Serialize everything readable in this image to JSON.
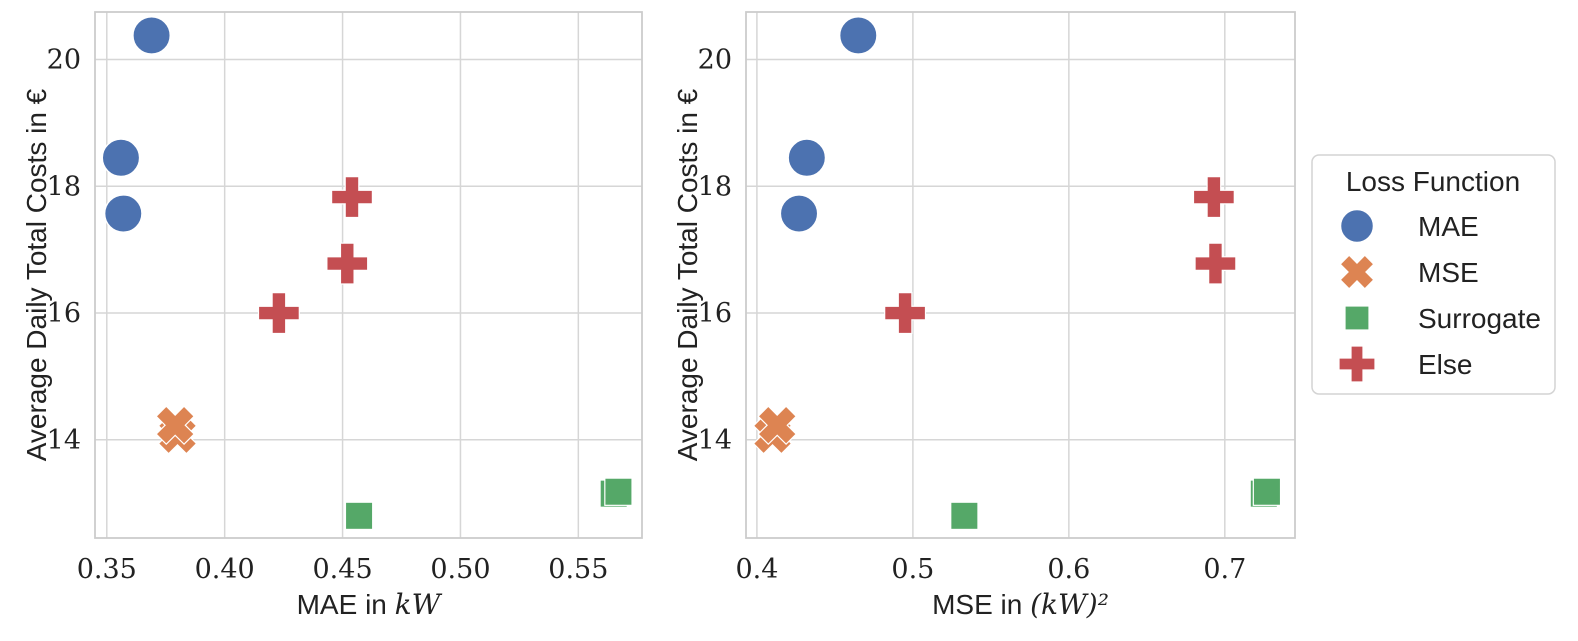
{
  "chart_data": [
    {
      "type": "scatter",
      "xlabel_prefix": "MAE in ",
      "xlabel_math": "kW",
      "ylabel": "Average Daily Total Costs in €",
      "xlim": [
        0.345,
        0.577
      ],
      "ylim": [
        12.45,
        20.75
      ],
      "xticks": [
        0.35,
        0.4,
        0.45,
        0.5,
        0.55
      ],
      "xtick_labels": [
        "0.35",
        "0.40",
        "0.45",
        "0.50",
        "0.55"
      ],
      "yticks": [
        14,
        16,
        18,
        20
      ],
      "ytick_labels": [
        "14",
        "16",
        "18",
        "20"
      ],
      "grid": true,
      "series": [
        {
          "name": "MAE",
          "marker": "circle",
          "color": "#4c72b0",
          "points": [
            {
              "x": 0.369,
              "y": 20.38
            },
            {
              "x": 0.356,
              "y": 18.45
            },
            {
              "x": 0.357,
              "y": 17.57
            }
          ]
        },
        {
          "name": "MSE",
          "marker": "x",
          "color": "#dd8452",
          "points": [
            {
              "x": 0.38,
              "y": 14.08
            },
            {
              "x": 0.379,
              "y": 14.23
            }
          ]
        },
        {
          "name": "Surrogate",
          "marker": "square",
          "color": "#55a868",
          "points": [
            {
              "x": 0.457,
              "y": 12.8
            },
            {
              "x": 0.565,
              "y": 13.15
            },
            {
              "x": 0.567,
              "y": 13.18
            }
          ]
        },
        {
          "name": "Else",
          "marker": "plus",
          "color": "#c44e52",
          "points": [
            {
              "x": 0.454,
              "y": 17.83
            },
            {
              "x": 0.452,
              "y": 16.78
            },
            {
              "x": 0.423,
              "y": 16.0
            }
          ]
        }
      ]
    },
    {
      "type": "scatter",
      "xlabel_prefix": "MSE in ",
      "xlabel_math": "(kW)²",
      "ylabel": "Average Daily Total Costs in €",
      "xlim": [
        0.393,
        0.745
      ],
      "ylim": [
        12.45,
        20.75
      ],
      "xticks": [
        0.4,
        0.5,
        0.6,
        0.7
      ],
      "xtick_labels": [
        "0.4",
        "0.5",
        "0.6",
        "0.7"
      ],
      "yticks": [
        14,
        16,
        18,
        20
      ],
      "ytick_labels": [
        "14",
        "16",
        "18",
        "20"
      ],
      "grid": true,
      "series": [
        {
          "name": "MAE",
          "marker": "circle",
          "color": "#4c72b0",
          "points": [
            {
              "x": 0.465,
              "y": 20.38
            },
            {
              "x": 0.432,
              "y": 18.45
            },
            {
              "x": 0.427,
              "y": 17.57
            }
          ]
        },
        {
          "name": "MSE",
          "marker": "x",
          "color": "#dd8452",
          "points": [
            {
              "x": 0.41,
              "y": 14.08
            },
            {
              "x": 0.413,
              "y": 14.23
            }
          ]
        },
        {
          "name": "Surrogate",
          "marker": "square",
          "color": "#55a868",
          "points": [
            {
              "x": 0.533,
              "y": 12.8
            },
            {
              "x": 0.725,
              "y": 13.15
            },
            {
              "x": 0.727,
              "y": 13.18
            }
          ]
        },
        {
          "name": "Else",
          "marker": "plus",
          "color": "#c44e52",
          "points": [
            {
              "x": 0.693,
              "y": 17.83
            },
            {
              "x": 0.694,
              "y": 16.78
            },
            {
              "x": 0.495,
              "y": 16.0
            }
          ]
        }
      ]
    }
  ],
  "legend": {
    "title": "Loss Function",
    "placement": "right",
    "entries": [
      {
        "label": "MAE",
        "marker": "circle",
        "color": "#4c72b0"
      },
      {
        "label": "MSE",
        "marker": "x",
        "color": "#dd8452"
      },
      {
        "label": "Surrogate",
        "marker": "square",
        "color": "#55a868"
      },
      {
        "label": "Else",
        "marker": "plus",
        "color": "#c44e52"
      }
    ]
  }
}
